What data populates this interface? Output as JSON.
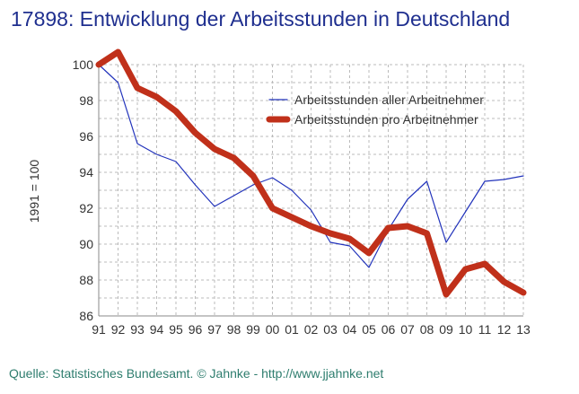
{
  "chart_data": {
    "type": "line",
    "title": "17898: Entwicklung der Arbeitsstunden in Deutschland",
    "xlabel": "",
    "ylabel": "1991 = 100",
    "categories": [
      "91",
      "92",
      "93",
      "94",
      "95",
      "96",
      "97",
      "98",
      "99",
      "00",
      "01",
      "02",
      "03",
      "04",
      "05",
      "06",
      "07",
      "08",
      "09",
      "10",
      "11",
      "12",
      "13"
    ],
    "ylim": [
      86,
      100
    ],
    "yticks": [
      86,
      88,
      90,
      92,
      94,
      96,
      98,
      100
    ],
    "grid": true,
    "legend_position": "top-right",
    "series": [
      {
        "name": "Arbeitsstunden aller Arbeitnehmer",
        "color": "#2233bb",
        "values": [
          100,
          99.0,
          95.6,
          95.0,
          94.6,
          93.3,
          92.1,
          92.7,
          93.3,
          93.7,
          93.0,
          91.9,
          90.1,
          89.9,
          88.7,
          90.8,
          92.5,
          93.5,
          90.1,
          91.8,
          93.5,
          93.6,
          93.8
        ]
      },
      {
        "name": "Arbeitsstunden pro Arbeitnehmer",
        "color": "#c0301a",
        "values": [
          100,
          100.7,
          98.7,
          98.2,
          97.4,
          96.2,
          95.3,
          94.8,
          93.8,
          92.0,
          91.5,
          91.0,
          90.6,
          90.3,
          89.5,
          90.9,
          91.0,
          90.6,
          87.2,
          88.6,
          88.9,
          87.9,
          87.3
        ]
      }
    ]
  },
  "footer": {
    "source": "Quelle: Statistisches Bundesamt. © Jahnke - http://www.jjahnke.net"
  }
}
